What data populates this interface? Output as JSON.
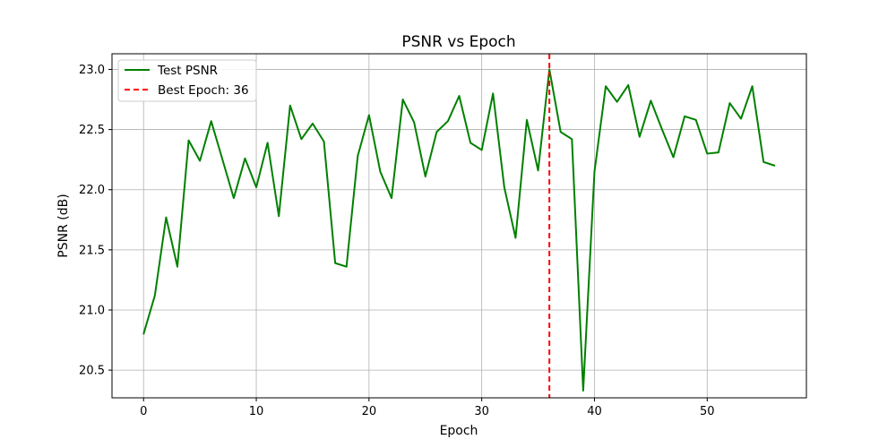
{
  "chart_data": {
    "type": "line",
    "title": "PSNR vs Epoch",
    "xlabel": "Epoch",
    "ylabel": "PSNR (dB)",
    "xlim": [
      -2.8,
      58.8
    ],
    "ylim": [
      20.27,
      23.13
    ],
    "xticks": [
      0,
      10,
      20,
      30,
      40,
      50
    ],
    "yticks": [
      20.5,
      21.0,
      21.5,
      22.0,
      22.5,
      23.0
    ],
    "ytick_labels": [
      "20.5",
      "21.0",
      "21.5",
      "22.0",
      "22.5",
      "23.0"
    ],
    "grid": true,
    "legend_position": "top-left",
    "series": [
      {
        "name": "Test PSNR",
        "color": "#008000",
        "style": "solid",
        "x": [
          0,
          1,
          2,
          3,
          4,
          5,
          6,
          7,
          8,
          9,
          10,
          11,
          12,
          13,
          14,
          15,
          16,
          17,
          18,
          19,
          20,
          21,
          22,
          23,
          24,
          25,
          26,
          27,
          28,
          29,
          30,
          31,
          32,
          33,
          34,
          35,
          36,
          37,
          38,
          39,
          40,
          41,
          42,
          43,
          44,
          45,
          46,
          47,
          48,
          49,
          50,
          51,
          52,
          53,
          54,
          55,
          56
        ],
        "y": [
          20.8,
          21.12,
          21.77,
          21.36,
          22.41,
          22.24,
          22.57,
          22.25,
          21.93,
          22.26,
          22.02,
          22.39,
          21.78,
          22.7,
          22.42,
          22.55,
          22.4,
          21.39,
          21.36,
          22.28,
          22.62,
          22.15,
          21.93,
          22.75,
          22.56,
          22.11,
          22.48,
          22.57,
          22.78,
          22.39,
          22.33,
          22.8,
          22.02,
          21.6,
          22.58,
          22.16,
          23.0,
          22.48,
          22.42,
          20.33,
          22.15,
          22.86,
          22.73,
          22.87,
          22.44,
          22.74,
          22.5,
          22.27,
          22.61,
          22.58,
          22.3,
          22.31,
          22.72,
          22.59,
          22.86,
          22.23,
          22.2
        ]
      }
    ],
    "best_epoch": {
      "name": "Best Epoch: 36",
      "x": 36,
      "color": "#ff0000",
      "style": "dashed"
    }
  }
}
